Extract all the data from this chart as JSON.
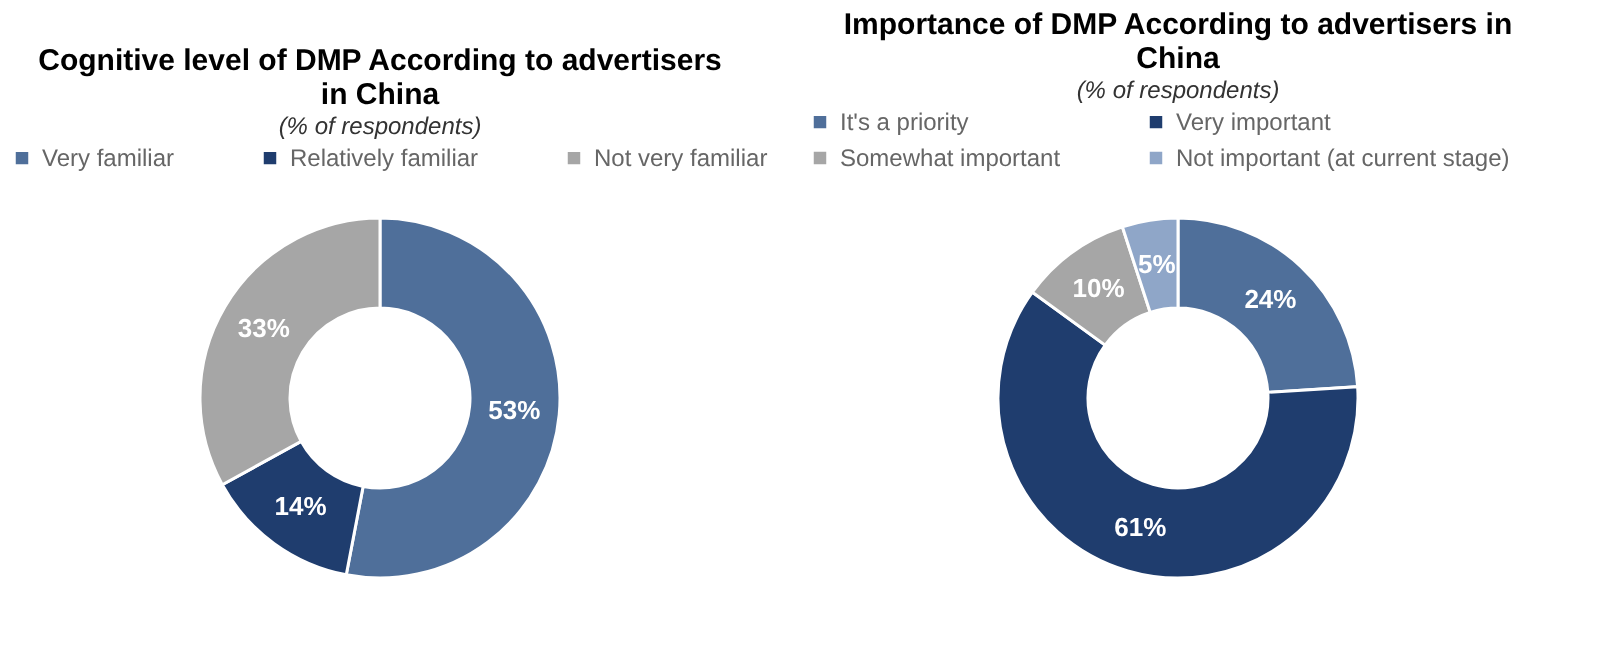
{
  "chart_data": [
    {
      "type": "donut",
      "title": "Cognitive level of DMP According to advertisers in China",
      "subtitle": "(% of respondents)",
      "categories": [
        "Very familiar",
        "Relatively familiar",
        "Not very familiar"
      ],
      "values": [
        53,
        14,
        33
      ],
      "value_labels": [
        "53%",
        "14%",
        "33%"
      ],
      "colors": [
        "#4f6f9a",
        "#1f3d6e",
        "#a6a6a6"
      ],
      "legend": "top"
    },
    {
      "type": "donut",
      "title": "Importance of DMP According to advertisers in China",
      "subtitle": "(% of respondents)",
      "categories": [
        "It's a priority",
        "Very important",
        "Somewhat important",
        "Not important (at current stage)"
      ],
      "values": [
        24,
        61,
        10,
        5
      ],
      "value_labels": [
        "24%",
        "61%",
        "10%",
        "5%"
      ],
      "colors": [
        "#4f6f9a",
        "#1f3d6e",
        "#a6a6a6",
        "#8fa6c8"
      ],
      "legend": "top"
    }
  ]
}
